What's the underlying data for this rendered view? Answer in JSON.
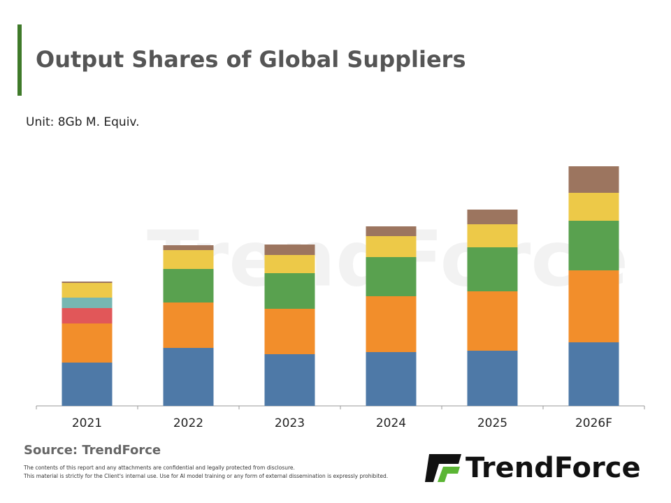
{
  "title": "Output Shares of Global Suppliers",
  "unit": "Unit: 8Gb  M. Equiv.",
  "source": "Source: TrendForce",
  "disclaimer": [
    "The contents of this report and any attachments are confidential and legally protected from disclosure.",
    "This material is strictly for the Client's internal use. Use for AI model training or any form of external dissemination is expressly prohibited."
  ],
  "logo": "TrendForce",
  "watermark": "TrendForce",
  "chart_data": {
    "type": "stacked_bar",
    "categories": [
      "2021",
      "2022",
      "2023",
      "2024",
      "2025",
      "2026F"
    ],
    "ylim": [
      0,
      350
    ],
    "series": [
      {
        "color": "#4e79a7",
        "values": [
          62,
          83,
          74,
          77,
          79,
          91
        ]
      },
      {
        "color": "#f28e2b",
        "values": [
          56,
          65,
          65,
          80,
          85,
          103
        ]
      },
      {
        "color": "#e15759",
        "values": [
          22,
          0,
          0,
          0,
          0,
          0
        ]
      },
      {
        "color": "#76b7b2",
        "values": [
          15,
          0,
          0,
          0,
          0,
          0
        ]
      },
      {
        "color": "#59a14f",
        "values": [
          0,
          48,
          51,
          56,
          63,
          71
        ]
      },
      {
        "color": "#edc948",
        "values": [
          21,
          27,
          26,
          30,
          33,
          40
        ]
      },
      {
        "color": "#9c755f",
        "values": [
          2,
          7,
          15,
          14,
          21,
          38
        ]
      }
    ]
  }
}
